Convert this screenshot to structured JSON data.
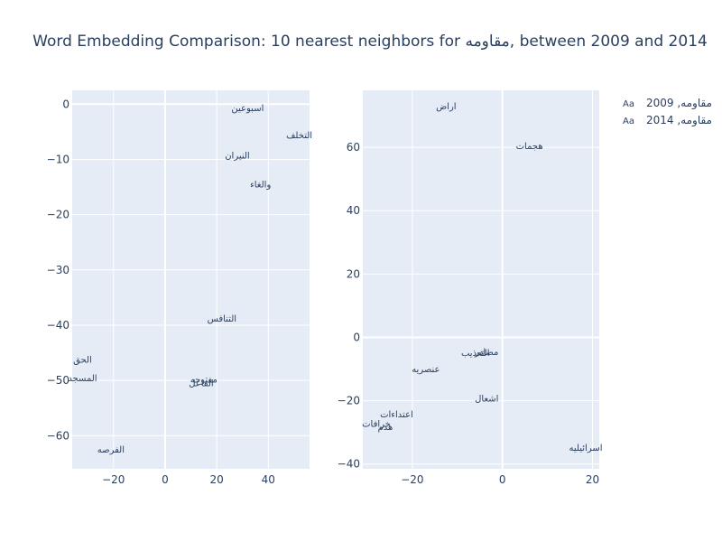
{
  "title": "Word Embedding Comparison: 10 nearest neighbors for مقاومه, between 2009 and 2014",
  "colors": {
    "plot_bg": "#e5ecf6",
    "grid": "#ffffff",
    "text": "#2a3f5f"
  },
  "legend": {
    "position": "top-right",
    "items": [
      {
        "glyph": "Aa",
        "label": "مقاومه, 2009"
      },
      {
        "glyph": "Aa",
        "label": "مقاومه, 2014"
      }
    ]
  },
  "chart_data": [
    {
      "type": "scatter",
      "mode": "text",
      "series_label": "مقاومه, 2009",
      "xlim": [
        -36,
        56
      ],
      "ylim": [
        -66,
        2.5
      ],
      "xticks": [
        -20,
        0,
        20,
        40
      ],
      "yticks": [
        0,
        -10,
        -20,
        -30,
        -40,
        -50,
        -60
      ],
      "grid": true,
      "points": [
        {
          "x": 32,
          "y": -0.7,
          "text": "اسبوعين"
        },
        {
          "x": 52,
          "y": -5.6,
          "text": "التخلف"
        },
        {
          "x": 28,
          "y": -9.3,
          "text": "النيران"
        },
        {
          "x": 37,
          "y": -14.5,
          "text": "والغاء"
        },
        {
          "x": 22,
          "y": -38.8,
          "text": "التنافس"
        },
        {
          "x": -32,
          "y": -46.2,
          "text": "الحق"
        },
        {
          "x": -32,
          "y": -49.6,
          "text": "المسجد"
        },
        {
          "x": 15,
          "y": -49.8,
          "text": "مفتوحه"
        },
        {
          "x": 14,
          "y": -50.5,
          "text": "الفاعل"
        },
        {
          "x": -21,
          "y": -62.5,
          "text": "الفرصه"
        }
      ]
    },
    {
      "type": "scatter",
      "mode": "text",
      "series_label": "مقاومه, 2014",
      "xlim": [
        -31,
        21.5
      ],
      "ylim": [
        -41.5,
        78
      ],
      "xticks": [
        -20,
        0,
        20
      ],
      "yticks": [
        60,
        40,
        20,
        0,
        -20,
        -40
      ],
      "grid": true,
      "points": [
        {
          "x": -12.5,
          "y": 73,
          "text": "اراض"
        },
        {
          "x": 6,
          "y": 60.5,
          "text": "هجمات"
        },
        {
          "x": -3.5,
          "y": -4.5,
          "text": "مصادر"
        },
        {
          "x": -6,
          "y": -4.8,
          "text": "التعذيب"
        },
        {
          "x": -17,
          "y": -10,
          "text": "عنصريه"
        },
        {
          "x": -3.5,
          "y": -19.2,
          "text": "اشعال"
        },
        {
          "x": -23.5,
          "y": -24.3,
          "text": "اعتداءات"
        },
        {
          "x": -28,
          "y": -27.3,
          "text": "خرافات"
        },
        {
          "x": -26,
          "y": -28.3,
          "text": "هدم"
        },
        {
          "x": 18.5,
          "y": -34.8,
          "text": "اسرائيليه"
        }
      ]
    }
  ]
}
